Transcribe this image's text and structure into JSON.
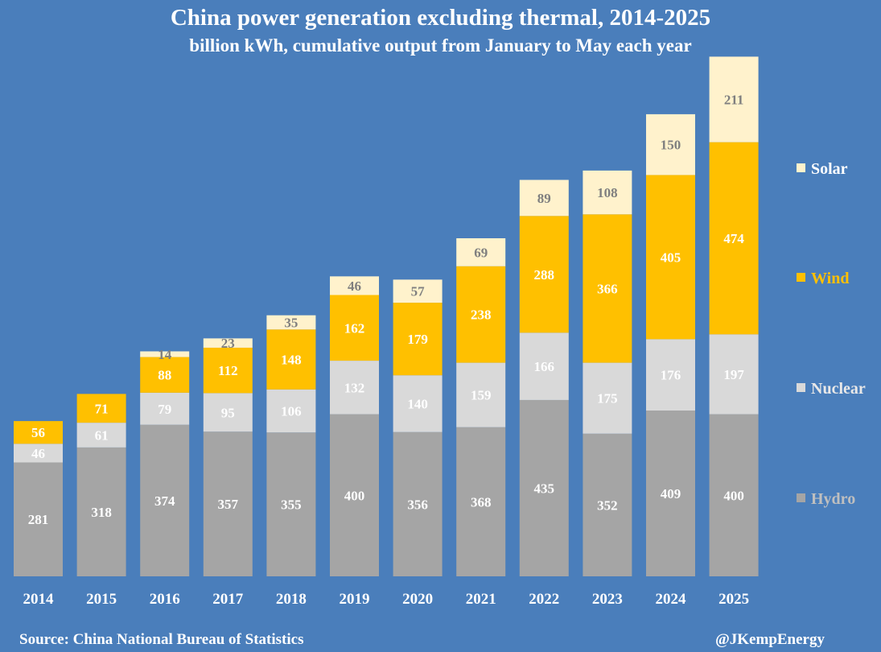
{
  "chart_data": {
    "type": "bar",
    "stacked": true,
    "title": "China power generation excluding thermal, 2014-2025",
    "subtitle": "billion kWh, cumulative output from January to May each year",
    "categories": [
      "2014",
      "2015",
      "2016",
      "2017",
      "2018",
      "2019",
      "2020",
      "2021",
      "2022",
      "2023",
      "2024",
      "2025"
    ],
    "series": [
      {
        "name": "Hydro",
        "color": "#a5a5a5",
        "label_color": "#ffffff",
        "legend_color": "#bfbfbf",
        "values": [
          281,
          318,
          374,
          357,
          355,
          400,
          356,
          368,
          435,
          352,
          409,
          400
        ]
      },
      {
        "name": "Nuclear",
        "color": "#d9d9d9",
        "label_color": "#ffffff",
        "legend_color": "#e8e8e8",
        "values": [
          46,
          61,
          79,
          95,
          106,
          132,
          140,
          159,
          166,
          175,
          176,
          197
        ]
      },
      {
        "name": "Wind",
        "color": "#ffc000",
        "label_color": "#ffffff",
        "legend_color": "#ffc000",
        "values": [
          56,
          71,
          88,
          112,
          148,
          162,
          179,
          238,
          288,
          366,
          405,
          474
        ]
      },
      {
        "name": "Solar",
        "color": "#fff2cc",
        "label_color": "#7f7f7f",
        "legend_color": "#ffffff",
        "values": [
          null,
          null,
          14,
          23,
          35,
          46,
          57,
          69,
          89,
          108,
          150,
          211
        ]
      }
    ],
    "legend_position": "right",
    "ylim": [
      0,
      1300
    ],
    "grid": false
  },
  "footer": {
    "source": "Source: China National Bureau of Statistics",
    "credit": "@JKempEnergy"
  }
}
